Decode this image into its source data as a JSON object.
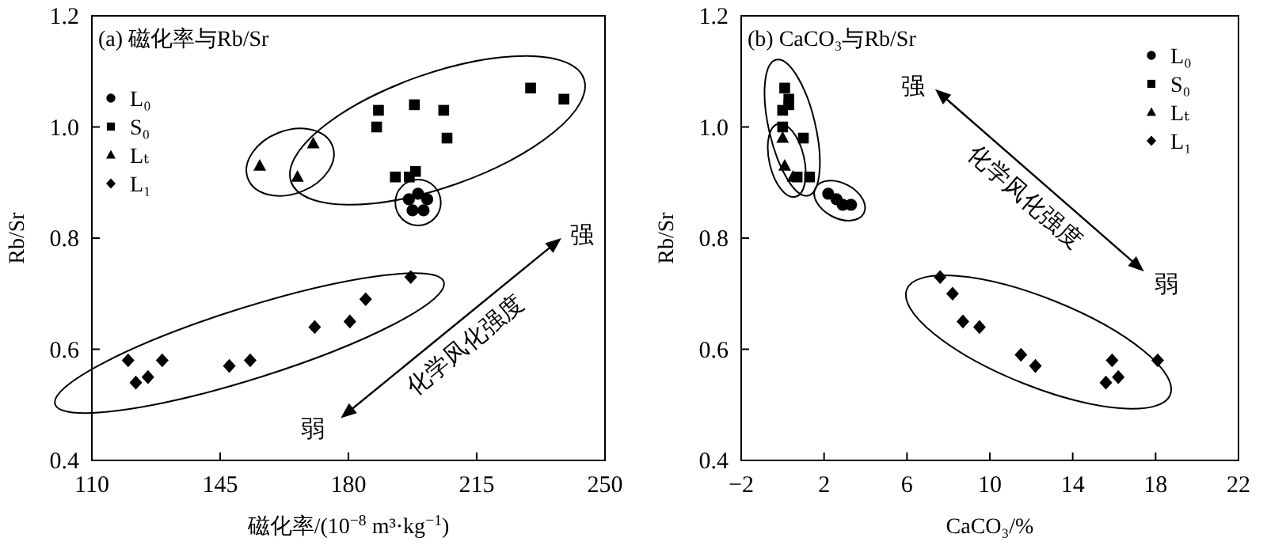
{
  "chart_data": [
    {
      "type": "scatter",
      "title": "(a) 磁化率与Rb/Sr",
      "xlabel": "磁化率/(10$^{−8}$ m³·kg$^{−1}$)",
      "ylabel": "Rb/Sr",
      "xlim": [
        110,
        250
      ],
      "xticks": [
        110,
        145,
        180,
        215,
        250
      ],
      "ylim": [
        0.4,
        1.2
      ],
      "yticks": [
        {
          "value": 0.4,
          "label": "0.4"
        },
        {
          "value": 0.6,
          "label": "0.6"
        },
        {
          "value": 0.8,
          "label": "0.8"
        },
        {
          "value": 1.0,
          "label": "1.0"
        },
        {
          "value": 1.2,
          "label": "1.2"
        }
      ],
      "legend": "top left",
      "grid": false,
      "annotations": [
        "强",
        "弱",
        "化学风化强度"
      ],
      "series": [
        {
          "name": "L₀",
          "color": "#000000",
          "marker": "circle",
          "x": [
            196.5,
            199.0,
            201.5,
            197.5,
            200.5
          ],
          "values": [
            0.87,
            0.88,
            0.87,
            0.85,
            0.85
          ]
        },
        {
          "name": "S₀",
          "color": "#000000",
          "marker": "square",
          "x": [
            188.2,
            198.0,
            206.0,
            229.7,
            238.8,
            187.7,
            206.9,
            192.8,
            196.6,
            198.3
          ],
          "values": [
            1.03,
            1.04,
            1.03,
            1.07,
            1.05,
            1.0,
            0.98,
            0.91,
            0.91,
            0.92
          ]
        },
        {
          "name": "Lₜ",
          "color": "#000000",
          "marker": "triangle",
          "x": [
            170.4,
            155.8,
            166.1
          ],
          "values": [
            0.97,
            0.93,
            0.91
          ]
        },
        {
          "name": "L₁",
          "color": "#000000",
          "marker": "diamond",
          "x": [
            119.9,
            122.0,
            125.3,
            129.2,
            147.5,
            153.2,
            170.8,
            180.4,
            184.7,
            197.0
          ],
          "values": [
            0.58,
            0.54,
            0.55,
            0.58,
            0.57,
            0.58,
            0.64,
            0.65,
            0.69,
            0.73
          ]
        }
      ]
    },
    {
      "type": "scatter",
      "title": "(b) CaCO₃与Rb/Sr",
      "xlabel": "CaCO₃/%",
      "ylabel": "Rb/Sr",
      "xlim": [
        -2,
        22
      ],
      "xticks": [
        {
          "value": -2,
          "label": "−2"
        },
        2,
        6,
        10,
        14,
        18,
        22
      ],
      "ylim": [
        0.4,
        1.2
      ],
      "yticks": [
        {
          "value": 0.4,
          "label": "0.4"
        },
        {
          "value": 0.6,
          "label": "0.6"
        },
        {
          "value": 0.8,
          "label": "0.8"
        },
        {
          "value": 1.0,
          "label": "1.0"
        },
        {
          "value": 1.2,
          "label": "1.2"
        }
      ],
      "legend": "top right",
      "grid": false,
      "annotations": [
        "强",
        "弱",
        "化学风化强度"
      ],
      "series": [
        {
          "name": "L₀",
          "color": "#000000",
          "marker": "circle",
          "x": [
            2.2,
            2.6,
            2.9,
            3.3
          ],
          "values": [
            0.88,
            0.87,
            0.86,
            0.86
          ]
        },
        {
          "name": "S₀",
          "color": "#000000",
          "marker": "square",
          "x": [
            0.1,
            0.3,
            0.0,
            0.3,
            0.0,
            1.0,
            0.7,
            1.3
          ],
          "values": [
            1.07,
            1.05,
            1.03,
            1.04,
            1.0,
            0.98,
            0.91,
            0.91
          ]
        },
        {
          "name": "Lₜ",
          "color": "#000000",
          "marker": "triangle",
          "x": [
            0.0,
            0.1,
            0.5
          ],
          "values": [
            0.98,
            0.93,
            0.91
          ]
        },
        {
          "name": "L₁",
          "color": "#000000",
          "marker": "diamond",
          "x": [
            7.6,
            8.2,
            8.7,
            9.5,
            11.5,
            12.2,
            15.9,
            15.6,
            16.2,
            18.1
          ],
          "values": [
            0.73,
            0.7,
            0.65,
            0.64,
            0.59,
            0.57,
            0.58,
            0.54,
            0.55,
            0.58
          ]
        }
      ]
    }
  ]
}
